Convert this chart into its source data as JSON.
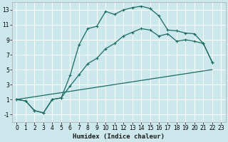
{
  "xlabel": "Humidex (Indice chaleur)",
  "bg_color": "#cce8ec",
  "grid_color": "#ffffff",
  "line_color": "#1a6b60",
  "xlim": [
    -0.5,
    23.5
  ],
  "ylim": [
    -2,
    14
  ],
  "xticks": [
    0,
    1,
    2,
    3,
    4,
    5,
    6,
    7,
    8,
    9,
    10,
    11,
    12,
    13,
    14,
    15,
    16,
    17,
    18,
    19,
    20,
    21,
    22,
    23
  ],
  "yticks": [
    -1,
    1,
    3,
    5,
    7,
    9,
    11,
    13
  ],
  "line1_x": [
    0,
    1,
    2,
    3,
    4,
    5,
    6,
    7,
    8,
    9,
    10,
    11,
    12,
    13,
    14,
    15,
    16,
    17,
    18,
    19,
    20,
    21,
    22
  ],
  "line1_y": [
    1.0,
    0.8,
    -0.5,
    -0.8,
    1.0,
    1.2,
    4.2,
    8.3,
    10.5,
    10.8,
    12.8,
    12.4,
    13.0,
    13.3,
    13.5,
    13.2,
    12.2,
    10.3,
    10.2,
    9.9,
    9.8,
    8.5,
    6.0
  ],
  "line2_x": [
    0,
    1,
    2,
    3,
    4,
    5,
    6,
    7,
    8,
    9,
    10,
    11,
    12,
    13,
    14,
    15,
    16,
    17,
    18,
    19,
    20,
    21,
    22
  ],
  "line2_y": [
    1.0,
    0.8,
    -0.5,
    -0.8,
    1.0,
    1.2,
    2.8,
    4.3,
    5.8,
    6.5,
    7.8,
    8.5,
    9.5,
    10.0,
    10.5,
    10.3,
    9.5,
    9.8,
    8.8,
    9.0,
    8.8,
    8.5,
    6.0
  ],
  "line3_x": [
    0,
    22
  ],
  "line3_y": [
    1.0,
    5.0
  ],
  "xlabel_fontsize": 6.5,
  "tick_fontsize": 5.5
}
